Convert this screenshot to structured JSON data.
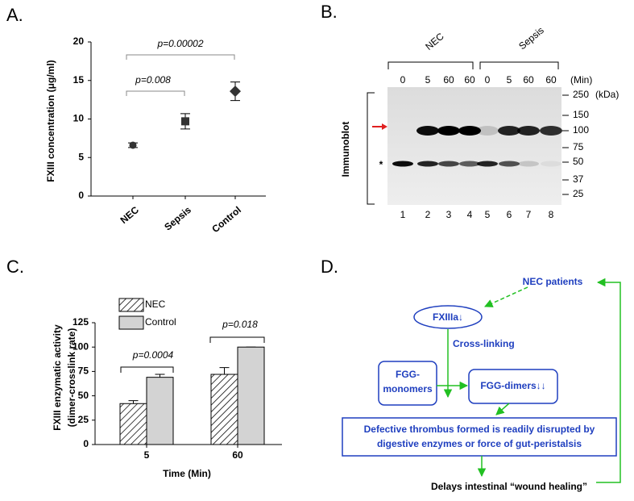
{
  "panel_labels": [
    "A.",
    "B.",
    "C.",
    "D."
  ],
  "chart_data": [
    {
      "type": "dot",
      "ylabel": "FXIII concentration (μg/ml)",
      "categories": [
        "NEC",
        "Sepsis",
        "Control"
      ],
      "values": [
        6.6,
        9.7,
        13.6
      ],
      "errors": [
        0.3,
        1.0,
        1.2
      ],
      "markers": [
        "circle",
        "square",
        "diamond"
      ],
      "color": "#333333",
      "ylim": [
        0,
        20
      ],
      "yticks": [
        0,
        5,
        10,
        15,
        20
      ],
      "annotations": [
        "p=0.00002",
        "p=0.008"
      ]
    },
    {
      "type": "bar",
      "ylabel": "FXIII enzymatic activity",
      "ylabel_sub": "(dimer-crosslink rate)",
      "xlabel": "Time (Min)",
      "categories": [
        "5",
        "60"
      ],
      "series": [
        {
          "name": "NEC",
          "color": "#ffffff",
          "hatch": true,
          "values": [
            42,
            72
          ],
          "errors": [
            3,
            7
          ]
        },
        {
          "name": "Control",
          "color": "#d3d3d3",
          "hatch": false,
          "values": [
            69,
            100
          ],
          "errors": [
            3,
            0
          ]
        }
      ],
      "ylim": [
        0,
        125
      ],
      "yticks": [
        0,
        25,
        50,
        75,
        100,
        125
      ],
      "annotations": [
        "p=0.0004",
        "p=0.018"
      ]
    }
  ],
  "blot": {
    "groups": [
      "NEC",
      "Sepsis"
    ],
    "times": [
      "0",
      "5",
      "60",
      "60",
      "0",
      "5",
      "60",
      "60"
    ],
    "time_unit": "(Min)",
    "mw": [
      250,
      150,
      100,
      75,
      50,
      37,
      25
    ],
    "mw_unit": "(kDa)",
    "label": "Immunoblot",
    "star": "*",
    "lanes": [
      1,
      2,
      3,
      4,
      5,
      6,
      7,
      8
    ]
  },
  "diagram": {
    "source": "NEC patients",
    "enzyme": "FXIIIa↓",
    "process": "Cross-linking",
    "monomers": [
      "FGG-",
      "monomers"
    ],
    "dimers": "FGG-dimers↓↓",
    "outcome": [
      "Defective thrombus formed is readily disrupted by",
      "digestive enzymes or force of gut-peristalsis"
    ],
    "result": "Delays intestinal “wound healing”"
  }
}
